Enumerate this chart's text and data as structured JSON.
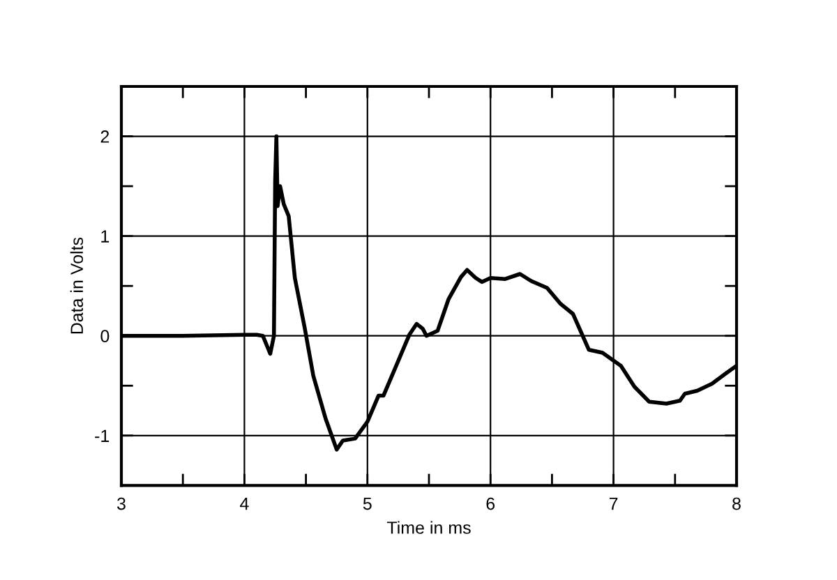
{
  "chart_data": {
    "type": "line",
    "xlabel": "Time in ms",
    "ylabel": "Data in Volts",
    "xlim": [
      3,
      8
    ],
    "ylim": [
      -1.5,
      2.5
    ],
    "xticks": [
      3,
      {
        "value": 3.5,
        "label": null
      },
      4,
      {
        "value": 4.5,
        "label": null
      },
      5,
      {
        "value": 5.5,
        "label": null
      },
      6,
      {
        "value": 6.5,
        "label": null
      },
      7,
      {
        "value": 7.5,
        "label": null
      },
      8
    ],
    "yticks": [
      {
        "value": -1.5,
        "label": null
      },
      -1,
      {
        "value": -0.5,
        "label": null
      },
      0,
      {
        "value": 0.5,
        "label": null
      },
      1,
      {
        "value": 1.5,
        "label": null
      },
      2,
      {
        "value": 2.5,
        "label": null
      }
    ],
    "grid": true,
    "marker": "none",
    "line_style": "solid",
    "series": [
      {
        "color": "#000000",
        "x": [
          3.0,
          3.5,
          4.0,
          4.1,
          4.15,
          4.21,
          4.24,
          4.25,
          4.26,
          4.27,
          4.29,
          4.32,
          4.36,
          4.41,
          4.49,
          4.56,
          4.66,
          4.75,
          4.8,
          4.9,
          5.0,
          5.09,
          5.13,
          5.22,
          5.34,
          5.4,
          5.45,
          5.48,
          5.57,
          5.66,
          5.76,
          5.81,
          5.88,
          5.93,
          6.0,
          6.12,
          6.24,
          6.33,
          6.46,
          6.57,
          6.67,
          6.8,
          6.91,
          7.06,
          7.17,
          7.29,
          7.43,
          7.54,
          7.58,
          7.68,
          7.8,
          7.91,
          8.0
        ],
        "values": [
          0.0,
          0.0,
          0.01,
          0.01,
          0.0,
          -0.18,
          0.0,
          1.55,
          2.0,
          1.3,
          1.5,
          1.32,
          1.2,
          0.58,
          0.08,
          -0.4,
          -0.83,
          -1.14,
          -1.05,
          -1.03,
          -0.86,
          -0.6,
          -0.6,
          -0.34,
          0.01,
          0.12,
          0.07,
          0.0,
          0.05,
          0.37,
          0.59,
          0.66,
          0.58,
          0.54,
          0.58,
          0.57,
          0.62,
          0.55,
          0.48,
          0.32,
          0.22,
          -0.14,
          -0.17,
          -0.3,
          -0.51,
          -0.66,
          -0.68,
          -0.65,
          -0.58,
          -0.55,
          -0.48,
          -0.38,
          -0.3
        ]
      }
    ]
  }
}
